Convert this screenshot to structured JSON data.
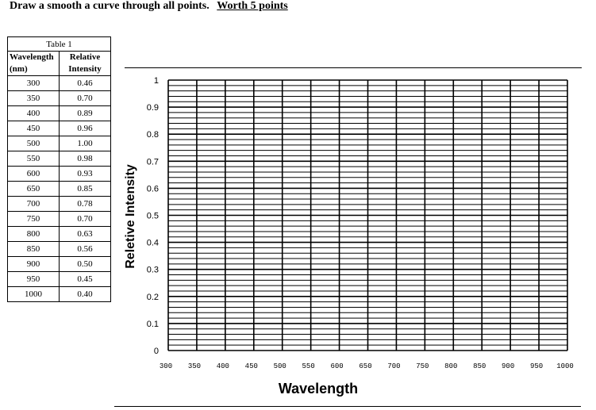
{
  "instructions": {
    "text": "Draw a smooth a curve through all points.",
    "worth": "Worth 5 points"
  },
  "table": {
    "title": "Table 1",
    "headers": {
      "wavelength_line1": "Wavelength",
      "wavelength_line2": "(nm)",
      "intensity_line1": "Relative",
      "intensity_line2": "Intensity"
    },
    "rows": [
      {
        "wavelength": "300",
        "intensity": "0.46"
      },
      {
        "wavelength": "350",
        "intensity": "0.70"
      },
      {
        "wavelength": "400",
        "intensity": "0.89"
      },
      {
        "wavelength": "450",
        "intensity": "0.96"
      },
      {
        "wavelength": "500",
        "intensity": "1.00"
      },
      {
        "wavelength": "550",
        "intensity": "0.98"
      },
      {
        "wavelength": "600",
        "intensity": "0.93"
      },
      {
        "wavelength": "650",
        "intensity": "0.85"
      },
      {
        "wavelength": "700",
        "intensity": "0.78"
      },
      {
        "wavelength": "750",
        "intensity": "0.70"
      },
      {
        "wavelength": "800",
        "intensity": "0.63"
      },
      {
        "wavelength": "850",
        "intensity": "0.56"
      },
      {
        "wavelength": "900",
        "intensity": "0.50"
      },
      {
        "wavelength": "950",
        "intensity": "0.45"
      },
      {
        "wavelength": "1000",
        "intensity": "0.40"
      }
    ]
  },
  "chart_data": {
    "type": "scatter",
    "title": "",
    "xlabel": "Wavelength",
    "ylabel": "Reletive Intensity",
    "x_ticks": [
      "300",
      "350",
      "400",
      "450",
      "500",
      "550",
      "600",
      "650",
      "700",
      "750",
      "800",
      "850",
      "900",
      "950",
      "1000"
    ],
    "y_ticks": [
      "0",
      "0.1",
      "0.2",
      "0.3",
      "0.4",
      "0.5",
      "0.6",
      "0.7",
      "0.8",
      "0.9",
      "1"
    ],
    "xlim": [
      300,
      1000
    ],
    "ylim": [
      0,
      1
    ],
    "grid": true,
    "minor_y_gridlines_per_major": 5,
    "series": [],
    "line_color": "#000000"
  }
}
